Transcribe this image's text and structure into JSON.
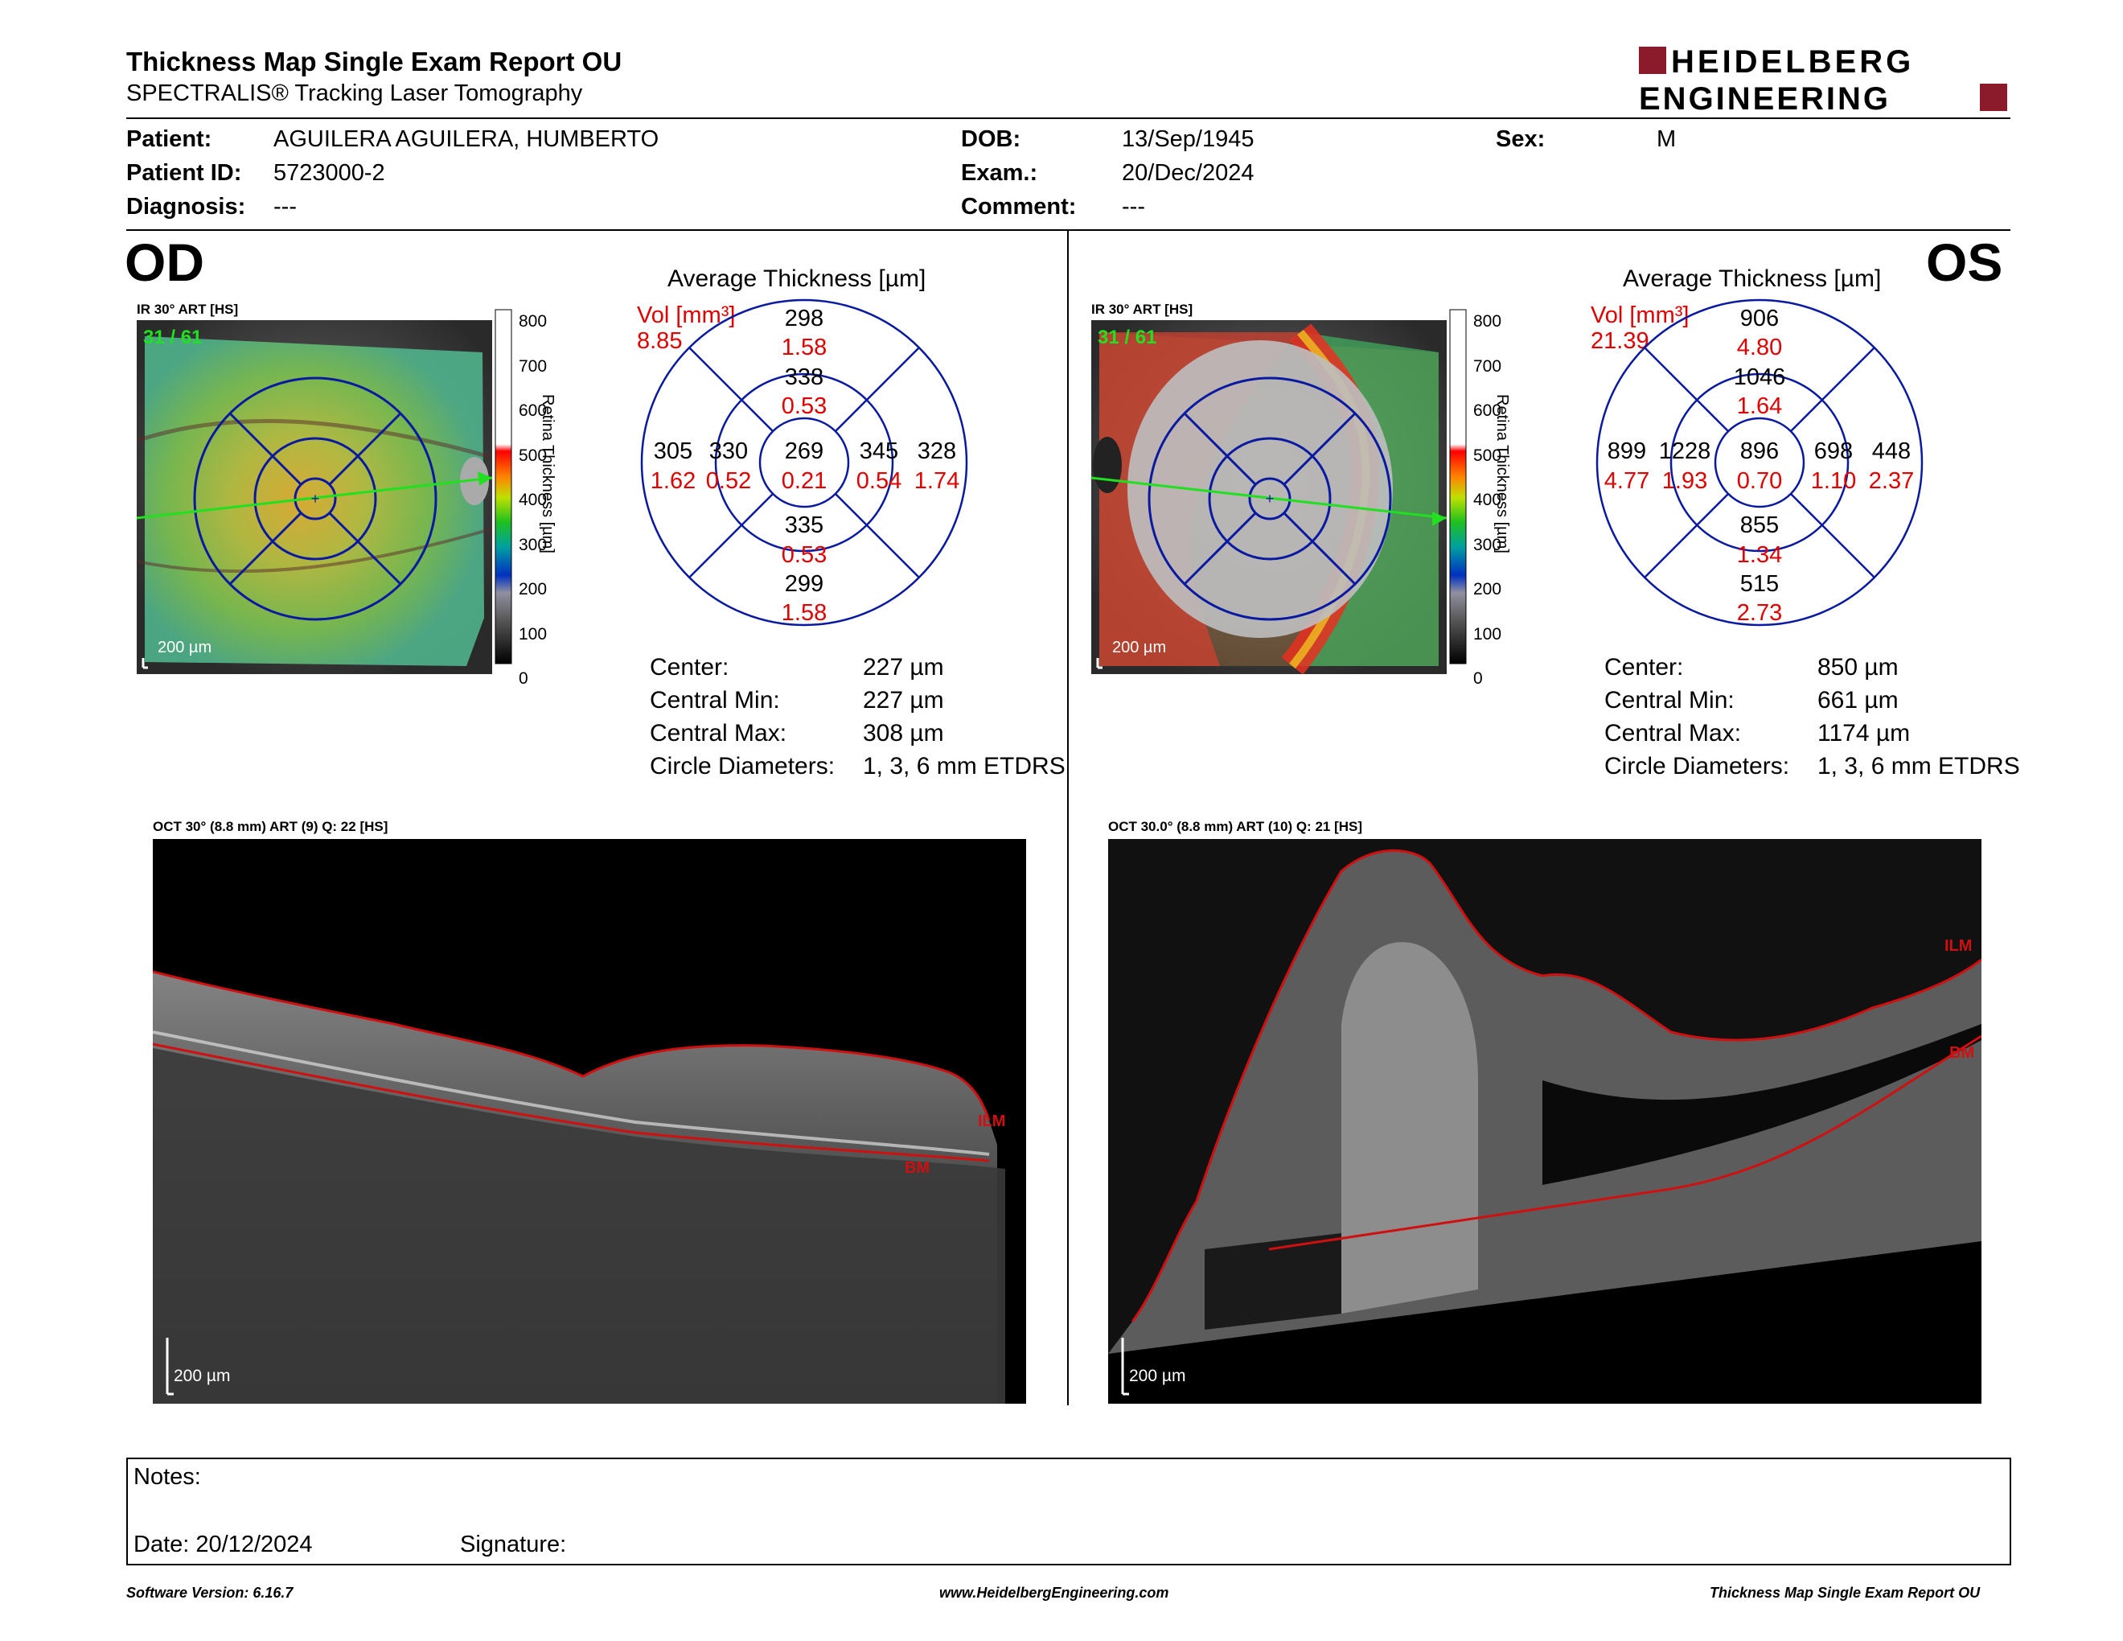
{
  "header": {
    "title": "Thickness Map Single Exam Report OU",
    "subtitle": "SPECTRALIS® Tracking Laser Tomography",
    "logo_line1": "HEIDELBERG",
    "logo_line2": "ENGINEERING"
  },
  "patient": {
    "patient_label": "Patient:",
    "patient_value": "AGUILERA  AGUILERA, HUMBERTO",
    "id_label": "Patient ID:",
    "id_value": "5723000-2",
    "diagnosis_label": "Diagnosis:",
    "diagnosis_value": "---",
    "dob_label": "DOB:",
    "dob_value": "13/Sep/1945",
    "exam_label": "Exam.:",
    "exam_value": "20/Dec/2024",
    "comment_label": "Comment:",
    "comment_value": "---",
    "sex_label": "Sex:",
    "sex_value": "M"
  },
  "od": {
    "eye": "OD",
    "ir_label": "IR 30° ART [HS]",
    "ir_counter": "31 / 61",
    "scale": "200 µm",
    "colorbar_ticks": [
      "800",
      "700",
      "600",
      "500",
      "400",
      "300",
      "200",
      "100",
      "0"
    ],
    "colorbar_title": "Retina  Thickness [µm]",
    "chart_title": "Average Thickness [µm]",
    "vol_label": "Vol [mm³]",
    "vol_value": "8.85",
    "sectors": {
      "outer_sup": {
        "t": "298",
        "v": "1.58"
      },
      "inner_sup": {
        "t": "338",
        "v": "0.53"
      },
      "outer_nas_left": {
        "t": "305",
        "v": "1.62"
      },
      "inner_left": {
        "t": "330",
        "v": "0.52"
      },
      "center": {
        "t": "269",
        "v": "0.21"
      },
      "inner_right": {
        "t": "345",
        "v": "0.54"
      },
      "outer_right": {
        "t": "328",
        "v": "1.74"
      },
      "inner_inf": {
        "t": "335",
        "v": "0.53"
      },
      "outer_inf": {
        "t": "299",
        "v": "1.58"
      }
    },
    "stats": [
      {
        "k": "Center:",
        "v": "227 µm"
      },
      {
        "k": "Central Min:",
        "v": "227 µm"
      },
      {
        "k": "Central Max:",
        "v": "308 µm"
      },
      {
        "k": "Circle Diameters:",
        "v": "1, 3, 6 mm ETDRS"
      }
    ],
    "oct_label": "OCT 30° (8.8 mm) ART (9) Q: 22 [HS]",
    "oct_scale": "200 µm",
    "ilm": "ILM",
    "bm": "BM"
  },
  "os": {
    "eye": "OS",
    "ir_label": "IR 30° ART [HS]",
    "ir_counter": "31 / 61",
    "scale": "200 µm",
    "colorbar_ticks": [
      "800",
      "700",
      "600",
      "500",
      "400",
      "300",
      "200",
      "100",
      "0"
    ],
    "colorbar_title": "Retina  Thickness [µm]",
    "chart_title": "Average Thickness [µm]",
    "vol_label": "Vol [mm³]",
    "vol_value": "21.39",
    "sectors": {
      "outer_sup": {
        "t": "906",
        "v": "4.80"
      },
      "inner_sup": {
        "t": "1046",
        "v": "1.64"
      },
      "outer_nas_left": {
        "t": "899",
        "v": "4.77"
      },
      "inner_left": {
        "t": "1228",
        "v": "1.93"
      },
      "center": {
        "t": "896",
        "v": "0.70"
      },
      "inner_right": {
        "t": "698",
        "v": "1.10"
      },
      "outer_right": {
        "t": "448",
        "v": "2.37"
      },
      "inner_inf": {
        "t": "855",
        "v": "1.34"
      },
      "outer_inf": {
        "t": "515",
        "v": "2.73"
      }
    },
    "stats": [
      {
        "k": "Center:",
        "v": "850 µm"
      },
      {
        "k": "Central Min:",
        "v": "661 µm"
      },
      {
        "k": "Central Max:",
        "v": "1174 µm"
      },
      {
        "k": "Circle Diameters:",
        "v": "1, 3, 6 mm ETDRS"
      }
    ],
    "oct_label": "OCT 30.0° (8.8 mm) ART (10) Q: 21 [HS]",
    "oct_scale": "200 µm",
    "ilm": "ILM",
    "bm": "BM"
  },
  "notes": {
    "notes_label": "Notes:",
    "date_label": "Date: 20/12/2024",
    "signature_label": "Signature:"
  },
  "footer": {
    "version": "Software Version: 6.16.7",
    "url": "www.HeidelbergEngineering.com",
    "report": "Thickness Map Single Exam Report OU"
  }
}
